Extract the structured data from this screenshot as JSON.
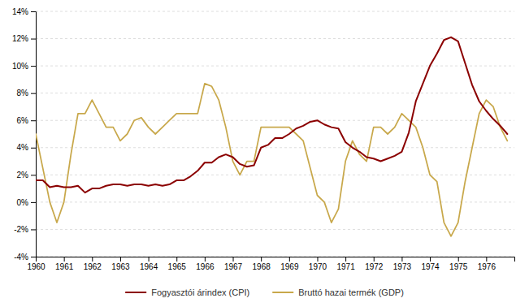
{
  "chart_data": {
    "type": "line",
    "x": [
      1960.0,
      1960.25,
      1960.5,
      1960.75,
      1961.0,
      1961.25,
      1961.5,
      1961.75,
      1962.0,
      1962.25,
      1962.5,
      1962.75,
      1963.0,
      1963.25,
      1963.5,
      1963.75,
      1964.0,
      1964.25,
      1964.5,
      1964.75,
      1965.0,
      1965.25,
      1965.5,
      1965.75,
      1966.0,
      1966.25,
      1966.5,
      1966.75,
      1967.0,
      1967.25,
      1967.5,
      1967.75,
      1968.0,
      1968.25,
      1968.5,
      1968.75,
      1969.0,
      1969.25,
      1969.5,
      1969.75,
      1970.0,
      1970.25,
      1970.5,
      1970.75,
      1971.0,
      1971.25,
      1971.5,
      1971.75,
      1972.0,
      1972.25,
      1972.5,
      1972.75,
      1973.0,
      1973.25,
      1973.5,
      1973.75,
      1974.0,
      1974.25,
      1974.5,
      1974.75,
      1975.0,
      1975.25,
      1975.5,
      1975.75,
      1976.0,
      1976.25,
      1976.5,
      1976.75
    ],
    "series": [
      {
        "name": "Bruttó hazai termék (GDP)",
        "color": "#C8A84B",
        "values": [
          5.0,
          2.5,
          0.0,
          -1.5,
          0.0,
          3.5,
          6.5,
          6.5,
          7.5,
          6.5,
          5.5,
          5.5,
          4.5,
          5.0,
          6.0,
          6.2,
          5.5,
          5.0,
          5.5,
          6.0,
          6.5,
          6.5,
          6.5,
          6.5,
          8.7,
          8.5,
          7.5,
          5.5,
          3.0,
          2.0,
          3.0,
          3.0,
          5.5,
          5.5,
          5.5,
          5.5,
          5.5,
          5.0,
          4.5,
          2.5,
          0.5,
          0.0,
          -1.5,
          -0.5,
          3.0,
          4.5,
          3.5,
          3.0,
          5.5,
          5.5,
          5.0,
          5.5,
          6.5,
          6.0,
          5.5,
          4.0,
          2.0,
          1.5,
          -1.5,
          -2.5,
          -1.5,
          1.5,
          4.0,
          6.5,
          7.5,
          7.0,
          5.5,
          4.5
        ]
      },
      {
        "name": "Fogyasztói árindex (CPI)",
        "color": "#8B0000",
        "values": [
          1.6,
          1.6,
          1.1,
          1.2,
          1.1,
          1.1,
          1.2,
          0.7,
          1.0,
          1.0,
          1.2,
          1.3,
          1.3,
          1.2,
          1.3,
          1.3,
          1.2,
          1.3,
          1.2,
          1.3,
          1.6,
          1.6,
          1.9,
          2.3,
          2.9,
          2.9,
          3.3,
          3.5,
          3.3,
          2.8,
          2.6,
          2.7,
          4.0,
          4.2,
          4.7,
          4.7,
          5.0,
          5.4,
          5.6,
          5.9,
          6.0,
          5.7,
          5.5,
          5.4,
          4.4,
          4.0,
          3.7,
          3.3,
          3.2,
          3.0,
          3.2,
          3.4,
          3.7,
          5.1,
          7.4,
          8.7,
          10.0,
          10.9,
          11.9,
          12.1,
          11.8,
          10.2,
          8.6,
          7.4,
          6.7,
          6.1,
          5.6,
          5.0
        ]
      }
    ],
    "xlim": [
      1960.0,
      1977.0
    ],
    "xticks": [
      1960,
      1961,
      1962,
      1963,
      1964,
      1965,
      1966,
      1967,
      1968,
      1969,
      1970,
      1971,
      1972,
      1973,
      1974,
      1975,
      1976
    ],
    "ylim": [
      -4,
      14
    ],
    "yticks": [
      {
        "value": -4,
        "label": "-4%"
      },
      {
        "value": -2,
        "label": "-2%"
      },
      {
        "value": 0,
        "label": "0%"
      },
      {
        "value": 2,
        "label": "2%"
      },
      {
        "value": 4,
        "label": "4%"
      },
      {
        "value": 6,
        "label": "6%"
      },
      {
        "value": 8,
        "label": "8%"
      },
      {
        "value": 10,
        "label": "10%"
      },
      {
        "value": 12,
        "label": "12%"
      },
      {
        "value": 14,
        "label": "14%"
      }
    ],
    "grid": true,
    "legend": "bottom"
  }
}
